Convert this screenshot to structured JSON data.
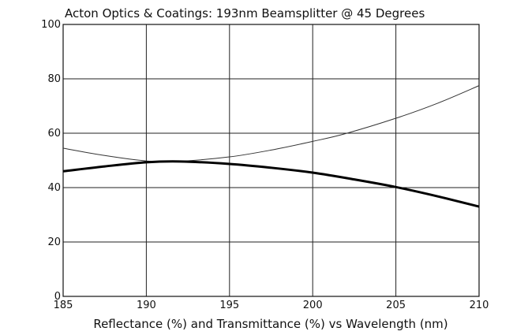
{
  "chart_data": {
    "type": "line",
    "title": "Acton Optics & Coatings: 193nm Beamsplitter @ 45 Degrees",
    "xlabel": "Reflectance (%) and Transmittance (%)  vs  Wavelength (nm)",
    "ylabel": "",
    "xlim": [
      185,
      210
    ],
    "ylim": [
      0,
      100
    ],
    "xticks": [
      185,
      190,
      195,
      200,
      205,
      210
    ],
    "yticks": [
      0,
      20,
      40,
      60,
      80,
      100
    ],
    "grid": true,
    "series": [
      {
        "style": "thin",
        "color": "#333333",
        "x": [
          185,
          187.5,
          190,
          192,
          195,
          197.5,
          200,
          202,
          205,
          207.5,
          210
        ],
        "y": [
          54.5,
          51.8,
          49.8,
          49.7,
          51.3,
          53.8,
          57.0,
          59.9,
          65.5,
          71.0,
          77.5
        ]
      },
      {
        "style": "thick",
        "color": "#000000",
        "x": [
          185,
          187.5,
          190,
          192,
          195,
          197.5,
          200,
          202.5,
          205,
          207.5,
          210
        ],
        "y": [
          46.0,
          47.8,
          49.3,
          49.6,
          48.7,
          47.3,
          45.5,
          43.0,
          40.2,
          36.8,
          33.0
        ]
      }
    ]
  }
}
